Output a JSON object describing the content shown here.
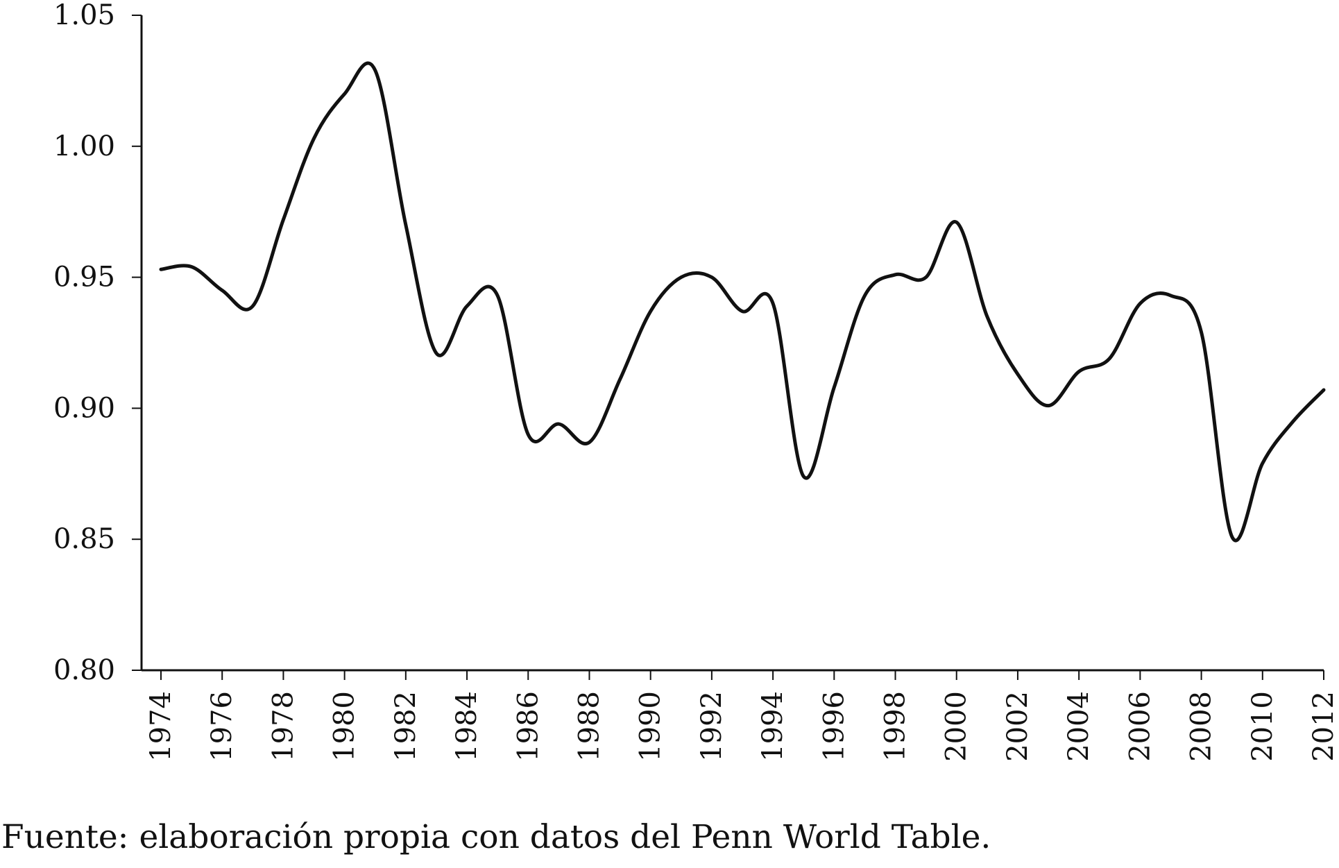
{
  "chart_data": {
    "type": "line",
    "title": "",
    "xlabel": "",
    "ylabel": "",
    "xlim": [
      1974,
      2012
    ],
    "ylim": [
      0.8,
      1.05
    ],
    "y_ticks": [
      "0.80",
      "0.85",
      "0.90",
      "0.95",
      "1.00",
      "1.05"
    ],
    "x_ticks": [
      "1974",
      "1976",
      "1978",
      "1980",
      "1982",
      "1984",
      "1986",
      "1988",
      "1990",
      "1992",
      "1994",
      "1996",
      "1998",
      "2000",
      "2002",
      "2004",
      "2006",
      "2008",
      "2010",
      "2012"
    ],
    "grid": false,
    "legend": "none",
    "line_color": "#111111",
    "x": [
      1974,
      1975,
      1976,
      1977,
      1978,
      1979,
      1980,
      1981,
      1982,
      1983,
      1984,
      1985,
      1986,
      1987,
      1988,
      1989,
      1990,
      1991,
      1992,
      1993,
      1994,
      1995,
      1996,
      1997,
      1998,
      1999,
      2000,
      2001,
      2002,
      2003,
      2004,
      2005,
      2006,
      2007,
      2008,
      2009,
      2010,
      2011,
      2012
    ],
    "series": [
      {
        "values": [
          0.953,
          0.954,
          0.945,
          0.939,
          0.972,
          1.003,
          1.02,
          1.029,
          0.97,
          0.921,
          0.939,
          0.943,
          0.89,
          0.894,
          0.887,
          0.911,
          0.937,
          0.95,
          0.95,
          0.937,
          0.94,
          0.874,
          0.908,
          0.943,
          0.951,
          0.95,
          0.971,
          0.935,
          0.913,
          0.901,
          0.914,
          0.919,
          0.94,
          0.943,
          0.929,
          0.851,
          0.879,
          0.895,
          0.907
        ]
      }
    ]
  },
  "footer": {
    "source": "Fuente: elaboración propia con datos del Penn World Table."
  }
}
